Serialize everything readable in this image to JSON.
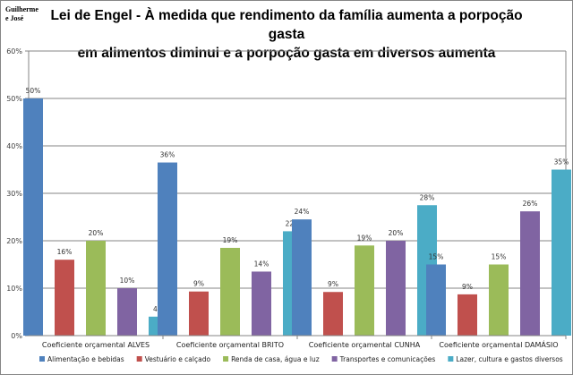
{
  "author": "Guilherme e José",
  "chart_data": {
    "type": "bar",
    "title_line1": "Lei de Engel - À medida que rendimento da família aumenta a porpoção gasta",
    "title_line2": "em alimentos diminui e a porpoção gasta em diversos aumenta",
    "ylim": [
      0,
      60
    ],
    "yticks": [
      "0%",
      "10%",
      "20%",
      "30%",
      "40%",
      "50%",
      "60%"
    ],
    "grid": true,
    "legend_position": "bottom",
    "categories": [
      "Coeficiente orçamental ALVES",
      "Coeficiente orçamental BRITO",
      "Coeficiente orçamental CUNHA",
      "Coeficiente orçamental DAMÁSIO"
    ],
    "series": [
      {
        "name": "Alimentação e bebidas",
        "color": "#4f81bd",
        "values": [
          50,
          36.5,
          24.5,
          15
        ],
        "labels": [
          "50%",
          "36%",
          "24%",
          "15%"
        ]
      },
      {
        "name": "Vestuário e calçado",
        "color": "#c0504d",
        "values": [
          16,
          9.3,
          9.2,
          8.7
        ],
        "labels": [
          "16%",
          "9%",
          "9%",
          "9%"
        ]
      },
      {
        "name": "Renda de casa, água e luz",
        "color": "#9bbb59",
        "values": [
          20,
          18.5,
          19,
          15
        ],
        "labels": [
          "20%",
          "19%",
          "19%",
          "15%"
        ]
      },
      {
        "name": "Transportes e comunicações",
        "color": "#8064a2",
        "values": [
          10,
          13.5,
          20,
          26.2
        ],
        "labels": [
          "10%",
          "14%",
          "20%",
          "26%"
        ]
      },
      {
        "name": "Lazer, cultura e gastos diversos",
        "color": "#4bacc6",
        "values": [
          4,
          22,
          27.5,
          35
        ],
        "labels": [
          "4%",
          "22%",
          "28%",
          "35%"
        ]
      }
    ]
  }
}
